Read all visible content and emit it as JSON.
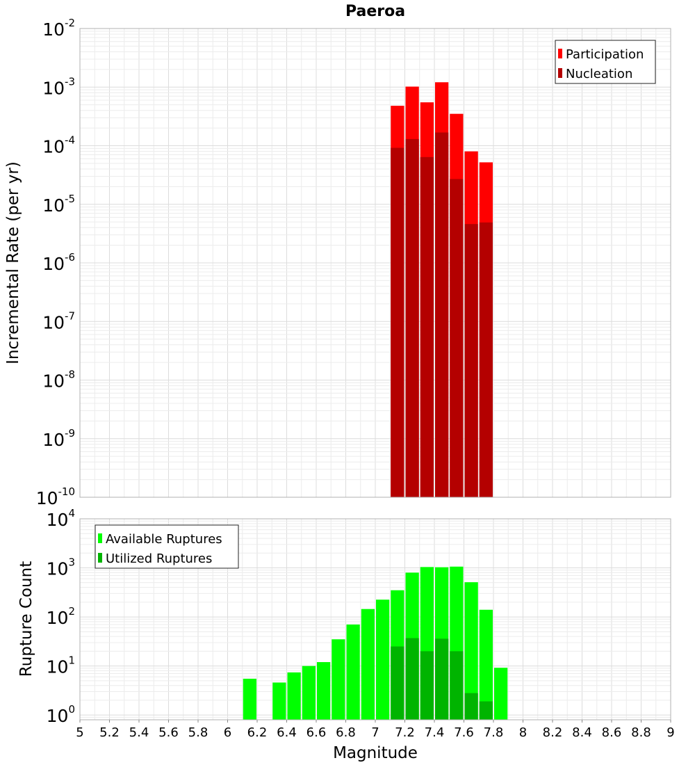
{
  "chart_data": [
    {
      "type": "bar",
      "title": "Paeroa",
      "xlabel": "",
      "ylabel": "Incremental Rate (per yr)",
      "yscale": "log",
      "xlim": [
        5,
        9
      ],
      "ylim": [
        1e-10,
        0.01
      ],
      "ytick_exponents": [
        -10,
        -9,
        -8,
        -7,
        -6,
        -5,
        -4,
        -3,
        -2
      ],
      "legend_placement": "top-right",
      "bin_width": 0.1,
      "x": [
        7.15,
        7.25,
        7.35,
        7.45,
        7.55,
        7.65,
        7.75
      ],
      "series": [
        {
          "name": "Participation",
          "color": "#ff0000",
          "values": [
            0.00048,
            0.00102,
            0.00055,
            0.00121,
            0.00035,
            8e-05,
            5.2e-05
          ]
        },
        {
          "name": "Nucleation",
          "color": "#b40000",
          "values": [
            9.2e-05,
            0.00013,
            6.4e-05,
            0.000168,
            2.7e-05,
            4.6e-06,
            4.9e-06
          ]
        }
      ]
    },
    {
      "type": "bar",
      "title": "",
      "xlabel": "Magnitude",
      "ylabel": "Rupture Count",
      "yscale": "log",
      "xlim": [
        5,
        9
      ],
      "ylim": [
        0.8,
        10000
      ],
      "ytick_exponents": [
        0,
        1,
        2,
        3,
        4
      ],
      "legend_placement": "top-left",
      "bin_width": 0.1,
      "x_ticks": [
        "5",
        "5.2",
        "5.4",
        "5.6",
        "5.8",
        "6",
        "6.2",
        "6.4",
        "6.6",
        "6.8",
        "7",
        "7.2",
        "7.4",
        "7.6",
        "7.8",
        "8",
        "8.2",
        "8.4",
        "8.6",
        "8.8",
        "9"
      ],
      "x": [
        6.15,
        6.35,
        6.45,
        6.55,
        6.65,
        6.75,
        6.85,
        6.95,
        7.05,
        7.15,
        7.25,
        7.35,
        7.45,
        7.55,
        7.65,
        7.75,
        7.85
      ],
      "series": [
        {
          "name": "Available Ruptures",
          "color": "#00ff00",
          "values": [
            5.5,
            4.6,
            7.4,
            10,
            12,
            35,
            70,
            145,
            225,
            350,
            800,
            1040,
            1030,
            1060,
            510,
            140,
            9.2
          ]
        },
        {
          "name": "Utilized Ruptures",
          "color": "#00b400",
          "values": [
            null,
            null,
            null,
            null,
            null,
            null,
            null,
            null,
            null,
            25,
            37,
            20,
            36,
            20,
            2.8,
            1.9,
            null
          ]
        }
      ]
    }
  ]
}
